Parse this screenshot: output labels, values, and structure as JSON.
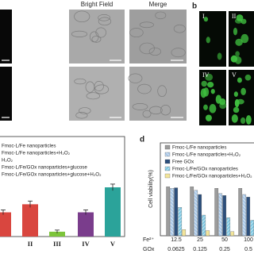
{
  "panel_a": {
    "columns": [
      "Bright Field",
      "Merge"
    ]
  },
  "panel_b": {
    "label": "b",
    "images": [
      "I",
      "II",
      "IV",
      "V"
    ]
  },
  "panel_c": {
    "legend": [
      "Fmoc-L/Fe nanoparticles",
      "Fmoc-L/Fe nanoparticles+H₂O₂",
      "H₂O₂",
      "Fmoc-L/Fe/GOx nanoparticles+glucose",
      "Fmoc-L/Fe/GOx nanoparticles+glucose+H₂O₂"
    ],
    "categories": [
      null,
      "II",
      "III",
      "IV",
      "V"
    ],
    "values": [
      30,
      40,
      6,
      30,
      61
    ],
    "errors": [
      3,
      4,
      2,
      3,
      4
    ],
    "colors": [
      "#d9463f",
      "#d9463f",
      "#7cc43a",
      "#7a3d8c",
      "#2ba39a"
    ]
  },
  "panel_d": {
    "label": "d",
    "ylabel": "Cell viability(%)",
    "ylim": [
      0,
      180
    ],
    "row_labels": [
      "Fe²⁺",
      "GOx"
    ],
    "fe": [
      "12.5",
      "25",
      "50",
      "100"
    ],
    "gox": [
      "0.0625",
      "0.125",
      "0.25",
      "0.5"
    ],
    "series": [
      {
        "name": "Fmoc-L/Fe nanoparticles",
        "color": "#9c9c9c",
        "values": [
          95,
          95,
          92,
          92
        ]
      },
      {
        "name": "Fmoc-L/Fe nanoparticles+H₂O₂",
        "color": "#a9c8e8",
        "values": [
          92,
          88,
          82,
          80
        ]
      },
      {
        "name": "Free GOx",
        "color": "#2c4f7c",
        "values": [
          93,
          80,
          78,
          75
        ]
      },
      {
        "name": "Fmoc-L/Fe/GOx nanoparticles",
        "color": "#7ec8e3",
        "values": [
          55,
          40,
          35,
          30
        ]
      },
      {
        "name": "Fmoc-L/Fe/GOx nanoparticles+H₂O₂",
        "color": "#f3e59a",
        "values": [
          12,
          10,
          8,
          6
        ]
      }
    ]
  }
}
